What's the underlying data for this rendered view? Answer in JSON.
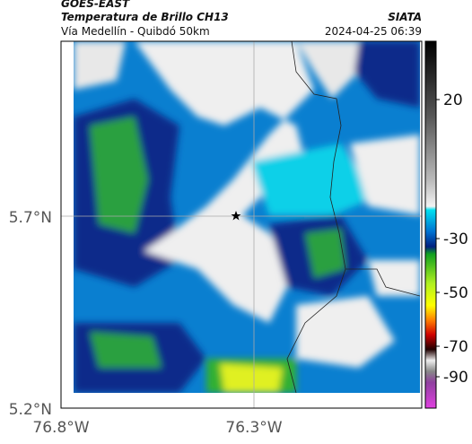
{
  "header": {
    "source": "GOES-EAST",
    "title": "Temperatura de Brillo CH13",
    "subtitle": "Vía Medellín - Quibdó 50km",
    "org": "SIATA",
    "datetime": "2024-04-25 06:39"
  },
  "map": {
    "lat_labels": [
      "5.7°N",
      "5.2°N"
    ],
    "lon_labels": [
      "76.8°W",
      "76.3°W"
    ]
  },
  "colorbar": {
    "tick_labels": [
      "20",
      "-30",
      "-50",
      "-70",
      "-90"
    ]
  }
}
